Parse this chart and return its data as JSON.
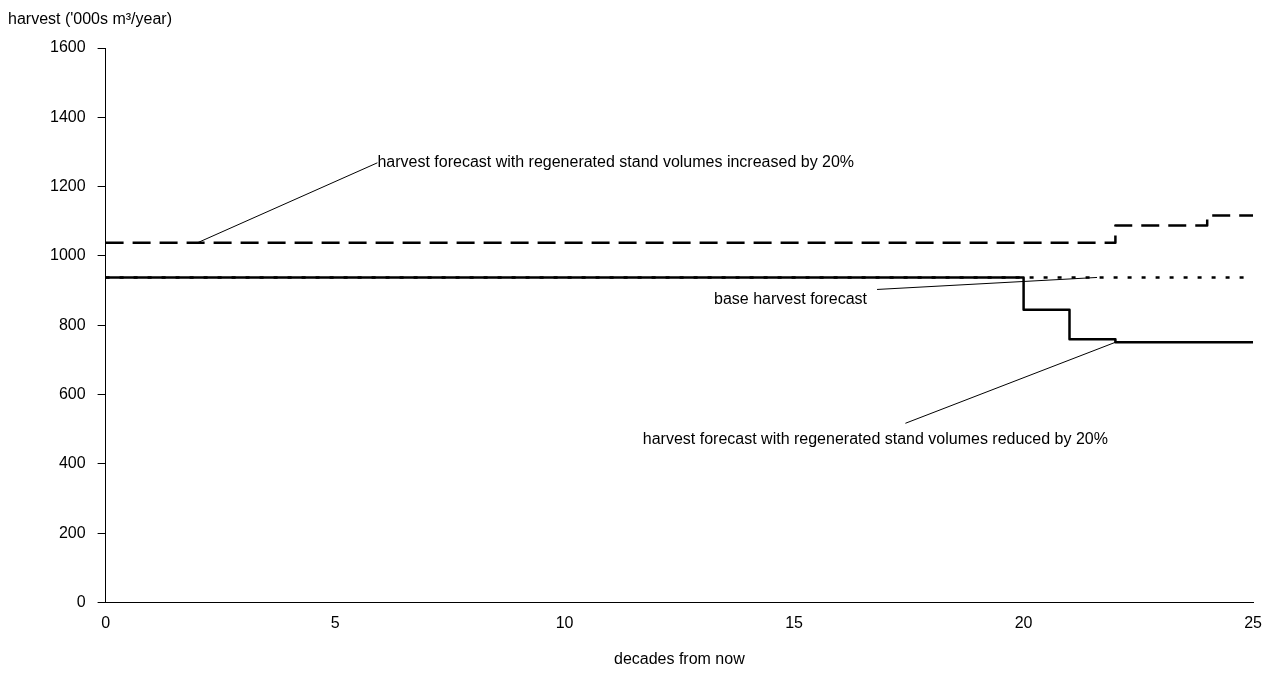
{
  "chart_data": {
    "type": "step",
    "xlabel": "decades from now",
    "ylabel": "harvest ('000s m³/year)",
    "xlim": [
      0,
      25
    ],
    "xticks": [
      0,
      5,
      10,
      15,
      20,
      25
    ],
    "ylim": [
      0,
      1600
    ],
    "yticks": [
      0,
      200,
      400,
      600,
      800,
      1000,
      1200,
      1400,
      1600
    ],
    "grid": false,
    "legend": false,
    "marker": "none",
    "series": [
      {
        "color": "#000000",
        "line_style": "dotted",
        "x": [
          0,
          25
        ],
        "values": [
          938,
          938
        ]
      },
      {
        "color": "#000000",
        "line_style": "dashed",
        "x": [
          0,
          22,
          24,
          25
        ],
        "values": [
          1038,
          1088,
          1117,
          1117
        ]
      },
      {
        "color": "#000000",
        "line_style": "solid",
        "x": [
          0,
          20,
          21,
          22,
          25
        ],
        "values": [
          938,
          845,
          760,
          751,
          751
        ]
      }
    ],
    "annotations": [
      {
        "text": "harvest forecast with regenerated stand volumes increased by 20%",
        "x": 2,
        "y": 1038
      },
      {
        "text": "base harvest forecast",
        "x": 21.6,
        "y": 938
      },
      {
        "text": "harvest forecast with regenerated stand volumes reduced by 20%",
        "x": 22,
        "y": 751
      }
    ]
  }
}
